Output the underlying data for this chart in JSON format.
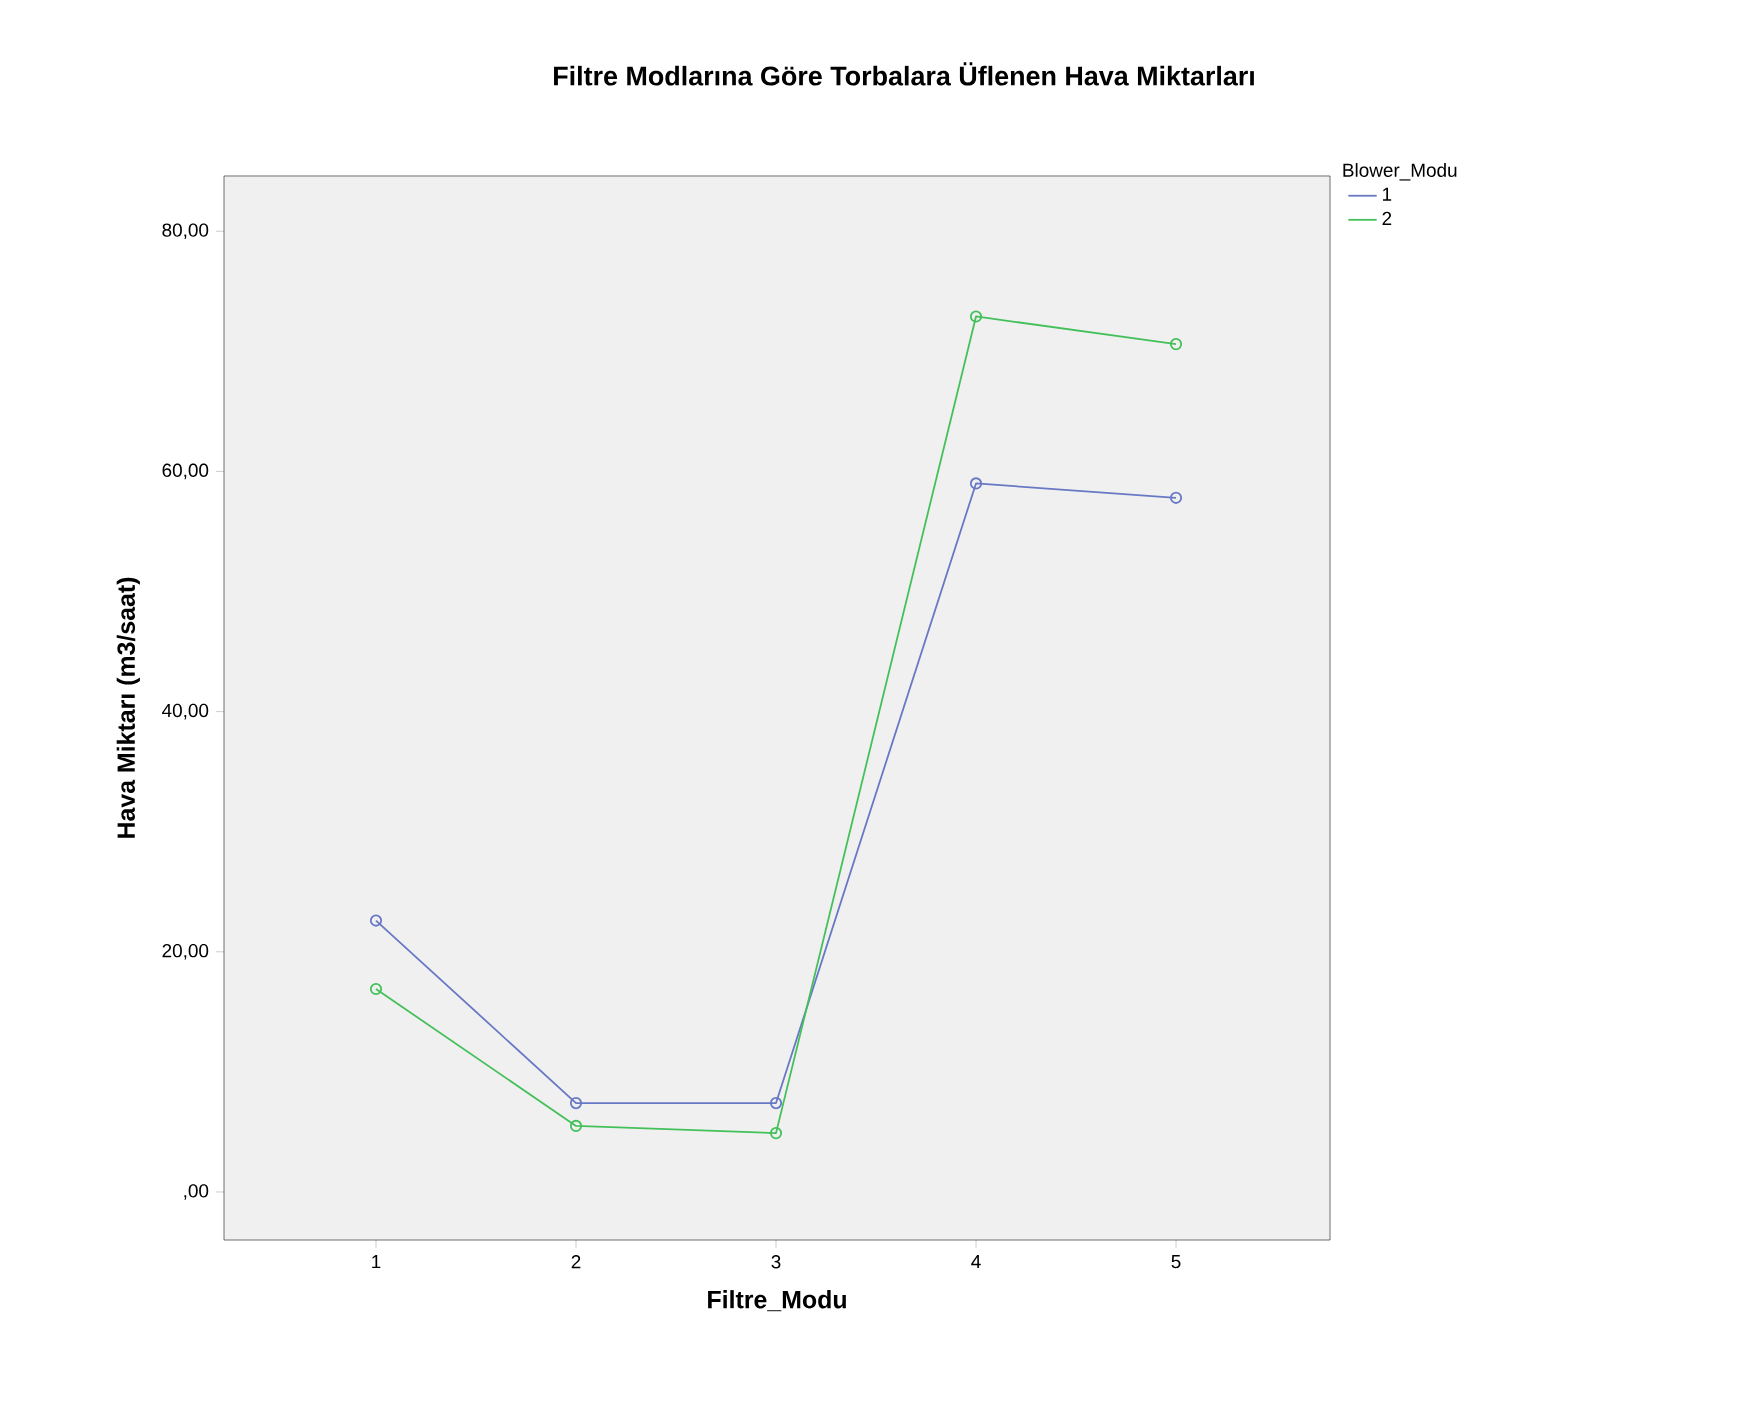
{
  "chart_data": {
    "type": "line",
    "title": "Filtre Modlarına Göre Torbalara Üflenen Hava Miktarları",
    "xlabel": "Filtre_Modu",
    "ylabel": "Hava Miktarı (m3/saat)",
    "legend_title": "Blower_Modu",
    "categories": [
      "1",
      "2",
      "3",
      "4",
      "5"
    ],
    "series": [
      {
        "name": "1",
        "color": "#6878c4",
        "values": [
          22.6,
          7.4,
          7.4,
          59.0,
          57.8
        ]
      },
      {
        "name": "2",
        "color": "#44c05a",
        "values": [
          16.9,
          5.5,
          4.9,
          72.9,
          70.6
        ]
      }
    ],
    "ylim": [
      -4,
      84.6
    ],
    "yticks": [
      {
        "value": 0,
        "label": ",00"
      },
      {
        "value": 20,
        "label": "20,00"
      },
      {
        "value": 40,
        "label": "40,00"
      },
      {
        "value": 60,
        "label": "60,00"
      },
      {
        "value": 80,
        "label": "80,00"
      }
    ],
    "marker": "circle",
    "line_style": "solid",
    "legend": "top right",
    "grid": false
  }
}
